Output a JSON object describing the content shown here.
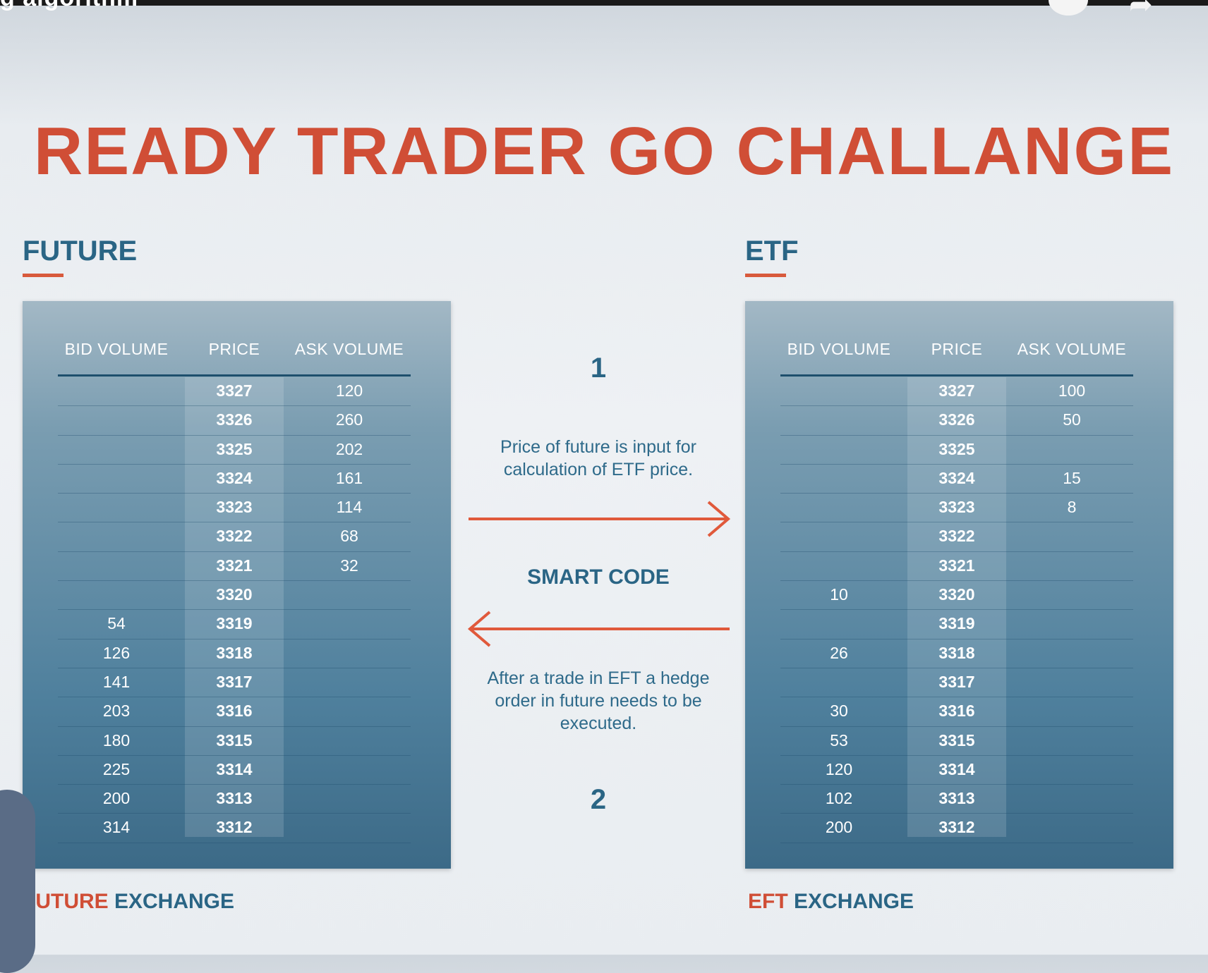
{
  "video": {
    "caption": "g algorithm"
  },
  "title": "READY TRADER GO CHALLANGE",
  "future": {
    "label": "FUTURE",
    "headers": {
      "bid": "BID VOLUME",
      "price": "PRICE",
      "ask": "ASK VOLUME"
    },
    "rows": [
      {
        "bid": "",
        "price": "3327",
        "ask": "120"
      },
      {
        "bid": "",
        "price": "3326",
        "ask": "260"
      },
      {
        "bid": "",
        "price": "3325",
        "ask": "202"
      },
      {
        "bid": "",
        "price": "3324",
        "ask": "161"
      },
      {
        "bid": "",
        "price": "3323",
        "ask": "114"
      },
      {
        "bid": "",
        "price": "3322",
        "ask": "68"
      },
      {
        "bid": "",
        "price": "3321",
        "ask": "32"
      },
      {
        "bid": "",
        "price": "3320",
        "ask": ""
      },
      {
        "bid": "54",
        "price": "3319",
        "ask": ""
      },
      {
        "bid": "126",
        "price": "3318",
        "ask": ""
      },
      {
        "bid": "141",
        "price": "3317",
        "ask": ""
      },
      {
        "bid": "203",
        "price": "3316",
        "ask": ""
      },
      {
        "bid": "180",
        "price": "3315",
        "ask": ""
      },
      {
        "bid": "225",
        "price": "3314",
        "ask": ""
      },
      {
        "bid": "200",
        "price": "3313",
        "ask": ""
      },
      {
        "bid": "314",
        "price": "3312",
        "ask": ""
      }
    ],
    "exchange_accent": "FUTURE",
    "exchange_rest": " EXCHANGE"
  },
  "etf": {
    "label": "ETF",
    "headers": {
      "bid": "BID VOLUME",
      "price": "PRICE",
      "ask": "ASK VOLUME"
    },
    "rows": [
      {
        "bid": "",
        "price": "3327",
        "ask": "100"
      },
      {
        "bid": "",
        "price": "3326",
        "ask": "50"
      },
      {
        "bid": "",
        "price": "3325",
        "ask": ""
      },
      {
        "bid": "",
        "price": "3324",
        "ask": "15"
      },
      {
        "bid": "",
        "price": "3323",
        "ask": "8"
      },
      {
        "bid": "",
        "price": "3322",
        "ask": ""
      },
      {
        "bid": "",
        "price": "3321",
        "ask": ""
      },
      {
        "bid": "10",
        "price": "3320",
        "ask": ""
      },
      {
        "bid": "",
        "price": "3319",
        "ask": ""
      },
      {
        "bid": "26",
        "price": "3318",
        "ask": ""
      },
      {
        "bid": "",
        "price": "3317",
        "ask": ""
      },
      {
        "bid": "30",
        "price": "3316",
        "ask": ""
      },
      {
        "bid": "53",
        "price": "3315",
        "ask": ""
      },
      {
        "bid": "120",
        "price": "3314",
        "ask": ""
      },
      {
        "bid": "102",
        "price": "3313",
        "ask": ""
      },
      {
        "bid": "200",
        "price": "3312",
        "ask": ""
      }
    ],
    "exchange_accent": "EFT",
    "exchange_rest": " EXCHANGE"
  },
  "middle": {
    "step1": "1",
    "desc1": "Price of future is input for calculation of ETF price.",
    "smart_code": "SMART CODE",
    "desc2": "After a trade in EFT a hedge order in future needs to be executed.",
    "step2": "2",
    "arrow_color": "#e0593b"
  },
  "colors": {
    "title": "#d04e36",
    "accent": "#2a6585"
  }
}
